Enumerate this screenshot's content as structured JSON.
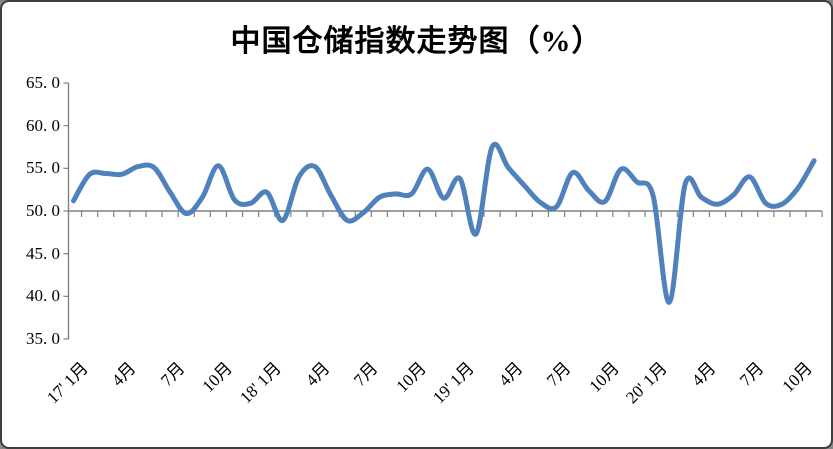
{
  "window": {
    "background": "#ffffff",
    "border_color": "#3f3f3f"
  },
  "chart_data": {
    "type": "line",
    "title": "中国仓储指数走势图（%）",
    "legend": "none",
    "gridlines": "none",
    "x_start": "2017-01",
    "x_end": "2020-11",
    "x_label_every_n_months": 3,
    "x_tick_labels": [
      "17' 1月",
      "4月",
      "7月",
      "10月",
      "18' 1月",
      "4月",
      "7月",
      "10月",
      "19' 1月",
      "4月",
      "7月",
      "10月",
      "20' 1月",
      "4月",
      "7月",
      "10月"
    ],
    "ylim": [
      35,
      65
    ],
    "y_ticks": [
      65,
      60,
      55,
      50,
      45,
      40,
      35
    ],
    "y_tick_labels": [
      "65. 0",
      "60. 0",
      "55. 0",
      "50. 0",
      "45. 0",
      "40. 0",
      "35. 0"
    ],
    "x_axis_cross_value": 50,
    "axis_color": "#808080",
    "series": [
      {
        "name": "中国仓储指数",
        "color": "#4F81BD",
        "smoothed": true,
        "values": [
          51.2,
          54.3,
          54.4,
          54.3,
          55.2,
          55.1,
          52.2,
          49.7,
          51.6,
          55.3,
          51.3,
          50.9,
          52.2,
          48.9,
          54.0,
          55.2,
          51.8,
          48.9,
          49.8,
          51.6,
          52.0,
          52.0,
          54.9,
          51.5,
          53.8,
          47.3,
          57.5,
          55.1,
          53.0,
          51.0,
          50.5,
          54.5,
          52.4,
          51.1,
          54.9,
          53.4,
          51.8,
          39.3,
          53.2,
          51.6,
          50.8,
          51.9,
          54.0,
          50.9,
          50.8,
          52.7,
          55.9
        ]
      }
    ]
  }
}
